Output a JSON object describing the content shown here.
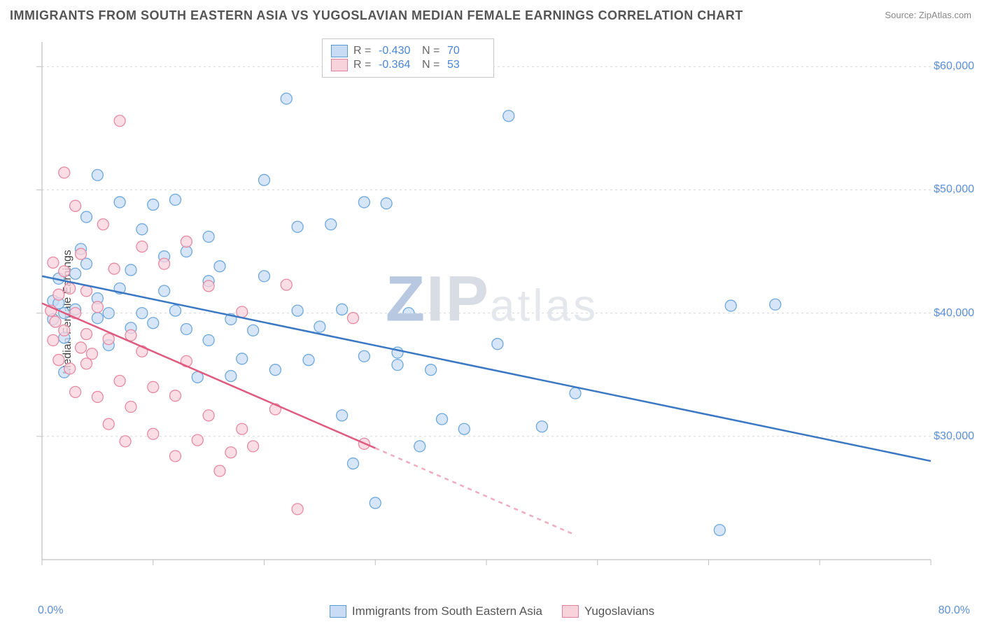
{
  "title": "IMMIGRANTS FROM SOUTH EASTERN ASIA VS YUGOSLAVIAN MEDIAN FEMALE EARNINGS CORRELATION CHART",
  "source": "Source: ZipAtlas.com",
  "ylabel": "Median Female Earnings",
  "watermark_prefix": "ZIP",
  "watermark_suffix": "atlas",
  "chart": {
    "type": "scatter",
    "xlim": [
      0,
      80
    ],
    "ylim": [
      20000,
      62000
    ],
    "x_tick_step": 10,
    "x_min_label": "0.0%",
    "x_max_label": "80.0%",
    "y_ticks": [
      30000,
      40000,
      50000,
      60000
    ],
    "y_tick_labels": [
      "$30,000",
      "$40,000",
      "$50,000",
      "$60,000"
    ],
    "grid_color": "#d5d5d5",
    "axis_color": "#bfbfbf",
    "background_color": "#ffffff",
    "tick_len": 8,
    "series": [
      {
        "id": "sea",
        "label": "Immigrants from South Eastern Asia",
        "fill": "#c8ddf5",
        "stroke": "#6ea8dc",
        "line_color": "#3b78c4",
        "R": "-0.430",
        "N": "70",
        "radius": 8,
        "line_width": 2.5,
        "trend": {
          "x1": 0,
          "y1": 43000,
          "x2": 80,
          "y2": 28000,
          "solid_until_x": 80
        },
        "points": [
          [
            1,
            41000
          ],
          [
            1,
            39500
          ],
          [
            1.5,
            40800
          ],
          [
            1.5,
            42800
          ],
          [
            2,
            40000
          ],
          [
            2,
            38000
          ],
          [
            2,
            35200
          ],
          [
            3,
            43200
          ],
          [
            3,
            40300
          ],
          [
            3.5,
            45200
          ],
          [
            4,
            44000
          ],
          [
            4,
            47800
          ],
          [
            5,
            51200
          ],
          [
            5,
            41200
          ],
          [
            5,
            39600
          ],
          [
            6,
            40000
          ],
          [
            6,
            37400
          ],
          [
            7,
            42000
          ],
          [
            7,
            49000
          ],
          [
            8,
            43500
          ],
          [
            8,
            38800
          ],
          [
            9,
            46800
          ],
          [
            9,
            40000
          ],
          [
            10,
            39200
          ],
          [
            10,
            48800
          ],
          [
            11,
            44600
          ],
          [
            11,
            41800
          ],
          [
            12,
            40200
          ],
          [
            12,
            49200
          ],
          [
            13,
            45000
          ],
          [
            13,
            38700
          ],
          [
            14,
            34800
          ],
          [
            15,
            42600
          ],
          [
            15,
            37800
          ],
          [
            15,
            46200
          ],
          [
            16,
            43800
          ],
          [
            17,
            39500
          ],
          [
            17,
            34900
          ],
          [
            18,
            36300
          ],
          [
            19,
            38600
          ],
          [
            20,
            50800
          ],
          [
            20,
            43000
          ],
          [
            21,
            35400
          ],
          [
            22,
            57400
          ],
          [
            23,
            40200
          ],
          [
            23,
            47000
          ],
          [
            24,
            36200
          ],
          [
            25,
            38900
          ],
          [
            26,
            47200
          ],
          [
            27,
            40300
          ],
          [
            27,
            31700
          ],
          [
            28,
            27800
          ],
          [
            29,
            36500
          ],
          [
            29,
            49000
          ],
          [
            30,
            24600
          ],
          [
            31,
            48900
          ],
          [
            32,
            36800
          ],
          [
            32,
            35800
          ],
          [
            33,
            40000
          ],
          [
            34,
            29200
          ],
          [
            35,
            35400
          ],
          [
            36,
            31400
          ],
          [
            38,
            30600
          ],
          [
            41,
            37500
          ],
          [
            45,
            30800
          ],
          [
            48,
            33500
          ],
          [
            61,
            22400
          ],
          [
            62,
            40600
          ],
          [
            66,
            40700
          ],
          [
            42,
            56000
          ]
        ]
      },
      {
        "id": "yugo",
        "label": "Yugoslavians",
        "fill": "#f9d3dc",
        "stroke": "#e58aa2",
        "line_color": "#e05a80",
        "R": "-0.364",
        "N": "53",
        "radius": 8,
        "line_width": 2.5,
        "trend": {
          "x1": 0,
          "y1": 40800,
          "x2": 48,
          "y2": 22000,
          "solid_until_x": 30
        },
        "points": [
          [
            0.8,
            40200
          ],
          [
            1,
            37800
          ],
          [
            1,
            44100
          ],
          [
            1.2,
            39300
          ],
          [
            1.5,
            41500
          ],
          [
            1.5,
            36200
          ],
          [
            2,
            38600
          ],
          [
            2,
            43400
          ],
          [
            2,
            51400
          ],
          [
            2.5,
            35500
          ],
          [
            2.5,
            42000
          ],
          [
            3,
            40000
          ],
          [
            3,
            33600
          ],
          [
            3,
            48700
          ],
          [
            3.5,
            37200
          ],
          [
            3.5,
            44800
          ],
          [
            4,
            41800
          ],
          [
            4,
            35900
          ],
          [
            4,
            38300
          ],
          [
            4.5,
            36700
          ],
          [
            5,
            33200
          ],
          [
            5,
            40500
          ],
          [
            5.5,
            47200
          ],
          [
            6,
            31000
          ],
          [
            6,
            37900
          ],
          [
            6.5,
            43600
          ],
          [
            7,
            34500
          ],
          [
            7,
            55600
          ],
          [
            7.5,
            29600
          ],
          [
            8,
            38200
          ],
          [
            8,
            32400
          ],
          [
            9,
            36900
          ],
          [
            9,
            45400
          ],
          [
            10,
            34000
          ],
          [
            10,
            30200
          ],
          [
            11,
            44000
          ],
          [
            12,
            33300
          ],
          [
            12,
            28400
          ],
          [
            13,
            36100
          ],
          [
            13,
            45800
          ],
          [
            14,
            29700
          ],
          [
            15,
            31700
          ],
          [
            15,
            42200
          ],
          [
            16,
            27200
          ],
          [
            17,
            28700
          ],
          [
            18,
            40100
          ],
          [
            18,
            30600
          ],
          [
            19,
            29200
          ],
          [
            21,
            32200
          ],
          [
            22,
            42300
          ],
          [
            23,
            24100
          ],
          [
            28,
            39600
          ],
          [
            29,
            29400
          ]
        ]
      }
    ]
  },
  "legend_labels": {
    "R": "R =",
    "N": "N ="
  }
}
